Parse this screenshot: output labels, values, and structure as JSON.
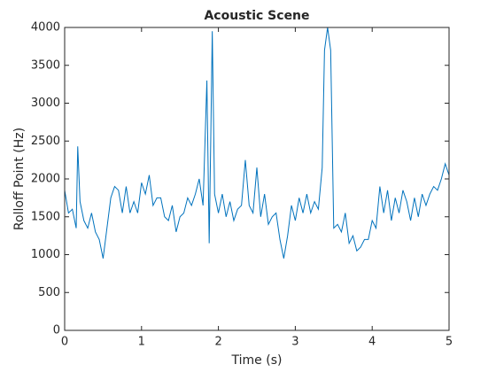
{
  "chart_data": {
    "type": "line",
    "title": "Acoustic Scene",
    "xlabel": "Time (s)",
    "ylabel": "Rolloff Point (Hz)",
    "x": [
      0,
      0.05,
      0.1,
      0.15,
      0.17,
      0.2,
      0.25,
      0.3,
      0.35,
      0.4,
      0.45,
      0.5,
      0.55,
      0.6,
      0.65,
      0.7,
      0.75,
      0.8,
      0.85,
      0.9,
      0.95,
      1.0,
      1.05,
      1.1,
      1.15,
      1.2,
      1.25,
      1.3,
      1.35,
      1.4,
      1.45,
      1.5,
      1.55,
      1.6,
      1.65,
      1.7,
      1.75,
      1.8,
      1.85,
      1.88,
      1.9,
      1.92,
      1.95,
      2.0,
      2.05,
      2.1,
      2.15,
      2.2,
      2.25,
      2.3,
      2.35,
      2.4,
      2.45,
      2.5,
      2.55,
      2.6,
      2.65,
      2.7,
      2.75,
      2.8,
      2.85,
      2.9,
      2.95,
      3.0,
      3.05,
      3.1,
      3.15,
      3.2,
      3.25,
      3.3,
      3.35,
      3.38,
      3.42,
      3.46,
      3.5,
      3.55,
      3.6,
      3.65,
      3.7,
      3.75,
      3.8,
      3.85,
      3.9,
      3.95,
      4.0,
      4.05,
      4.1,
      4.15,
      4.2,
      4.25,
      4.3,
      4.35,
      4.4,
      4.45,
      4.5,
      4.55,
      4.6,
      4.65,
      4.7,
      4.75,
      4.8,
      4.85,
      4.9,
      4.95,
      5.0
    ],
    "series": [
      {
        "name": "Rolloff",
        "color": "#0072bd",
        "values": [
          1850,
          1550,
          1600,
          1350,
          2430,
          1700,
          1450,
          1350,
          1550,
          1300,
          1200,
          950,
          1350,
          1750,
          1900,
          1850,
          1550,
          1900,
          1550,
          1700,
          1550,
          1950,
          1800,
          2050,
          1650,
          1750,
          1750,
          1500,
          1450,
          1650,
          1300,
          1500,
          1550,
          1750,
          1650,
          1800,
          2000,
          1650,
          3300,
          1150,
          2500,
          3950,
          1800,
          1550,
          1800,
          1500,
          1700,
          1450,
          1600,
          1650,
          2250,
          1650,
          1550,
          2150,
          1500,
          1800,
          1400,
          1500,
          1550,
          1200,
          950,
          1250,
          1650,
          1450,
          1750,
          1550,
          1800,
          1550,
          1700,
          1600,
          2150,
          3700,
          4000,
          3700,
          1350,
          1400,
          1300,
          1550,
          1150,
          1250,
          1050,
          1100,
          1200,
          1200,
          1450,
          1350,
          1900,
          1550,
          1850,
          1450,
          1750,
          1550,
          1850,
          1700,
          1450,
          1750,
          1500,
          1800,
          1650,
          1800,
          1900,
          1850,
          2000,
          2200,
          2050
        ]
      }
    ],
    "xlim": [
      0,
      5
    ],
    "xticks": [
      0,
      1,
      2,
      3,
      4,
      5
    ],
    "ylim": [
      0,
      4000
    ],
    "yticks": [
      0,
      500,
      1000,
      1500,
      2000,
      2500,
      3000,
      3500,
      4000
    ]
  }
}
